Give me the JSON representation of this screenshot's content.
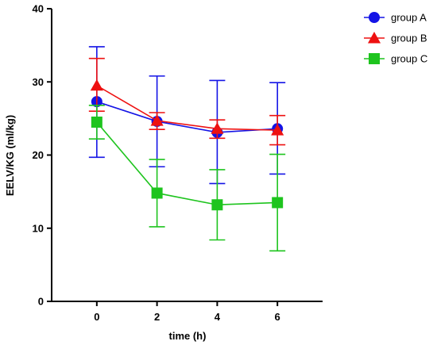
{
  "chart_data": {
    "type": "line",
    "xlabel": "time (h)",
    "ylabel": "EELV/KG (ml/kg)",
    "x": [
      0,
      2,
      4,
      6
    ],
    "xlim": [
      -1.5,
      7.5
    ],
    "ylim": [
      0,
      40
    ],
    "xticks": [
      "0",
      "2",
      "4",
      "6"
    ],
    "yticks": [
      "0",
      "10",
      "20",
      "30",
      "40"
    ],
    "grid": false,
    "legend_position": "top-right",
    "series": [
      {
        "name": "group A",
        "marker": "circle",
        "color": "#1414e6",
        "values": [
          27.3,
          24.6,
          23.1,
          23.6
        ],
        "error_upper": [
          34.8,
          30.8,
          30.2,
          29.9
        ],
        "error_lower": [
          19.7,
          18.4,
          16.1,
          17.4
        ]
      },
      {
        "name": "group B",
        "marker": "triangle",
        "color": "#ee1111",
        "values": [
          29.5,
          24.7,
          23.6,
          23.4
        ],
        "error_upper": [
          33.2,
          25.8,
          24.8,
          25.4
        ],
        "error_lower": [
          26.0,
          23.5,
          22.3,
          21.4
        ]
      },
      {
        "name": "group C",
        "marker": "square",
        "color": "#1ec41e",
        "values": [
          24.5,
          14.8,
          13.2,
          13.5
        ],
        "error_upper": [
          26.8,
          19.4,
          18.0,
          20.1
        ],
        "error_lower": [
          22.2,
          10.2,
          8.4,
          6.9
        ]
      }
    ]
  }
}
